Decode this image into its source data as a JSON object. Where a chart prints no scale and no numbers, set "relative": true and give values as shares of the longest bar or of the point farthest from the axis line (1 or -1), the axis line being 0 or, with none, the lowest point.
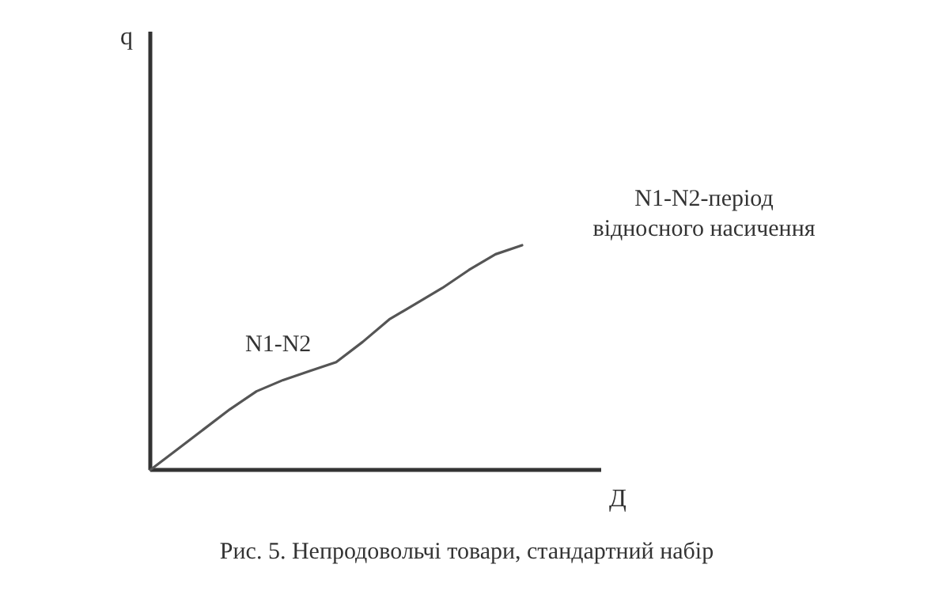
{
  "chart_data": {
    "type": "line",
    "title": "Рис. 5. Непродовольчі товари, стандартний набір",
    "xlabel": "Д",
    "relative": true,
    "categories": [
      null,
      null,
      null,
      null,
      null,
      null,
      null,
      null,
      null,
      null,
      null,
      null,
      null,
      null,
      null
    ],
    "series": [
      {
        "color": "#555555",
        "values": [
          0,
          0.09,
          0.18,
          0.27,
          0.35,
          0.4,
          0.44,
          0.48,
          0.57,
          0.67,
          0.74,
          0.81,
          0.89,
          0.96,
          1
        ]
      }
    ],
    "annotations": [
      "N1-N2",
      "N1-N2-період відносного насичення",
      "q"
    ],
    "marker": "none",
    "line_style": "solid",
    "grid": false
  }
}
